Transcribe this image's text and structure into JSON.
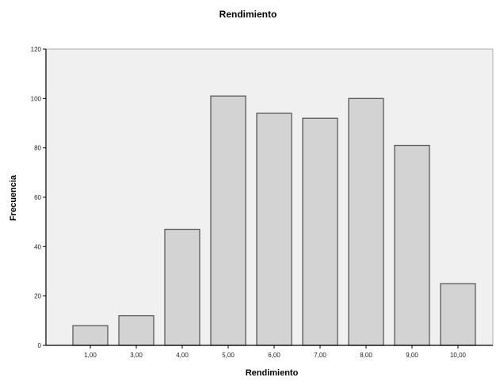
{
  "chart_data": {
    "type": "bar",
    "title": "Rendimiento",
    "xlabel": "Rendimiento",
    "ylabel": "Frecuencia",
    "categories": [
      "1,00",
      "3,00",
      "4,00",
      "5,00",
      "6,00",
      "7,00",
      "8,00",
      "9,00",
      "10,00"
    ],
    "values": [
      8,
      12,
      47,
      101,
      94,
      92,
      100,
      81,
      25
    ],
    "ylim": [
      0,
      120
    ],
    "yticks": [
      "0",
      "20",
      "40",
      "60",
      "80",
      "100",
      "120"
    ],
    "grid": false,
    "colors": {
      "bar_fill": "#d3d3d3",
      "bar_stroke": "#5a5a5a",
      "plot_bg": "#f0f0f0",
      "axis": "#000000"
    }
  }
}
